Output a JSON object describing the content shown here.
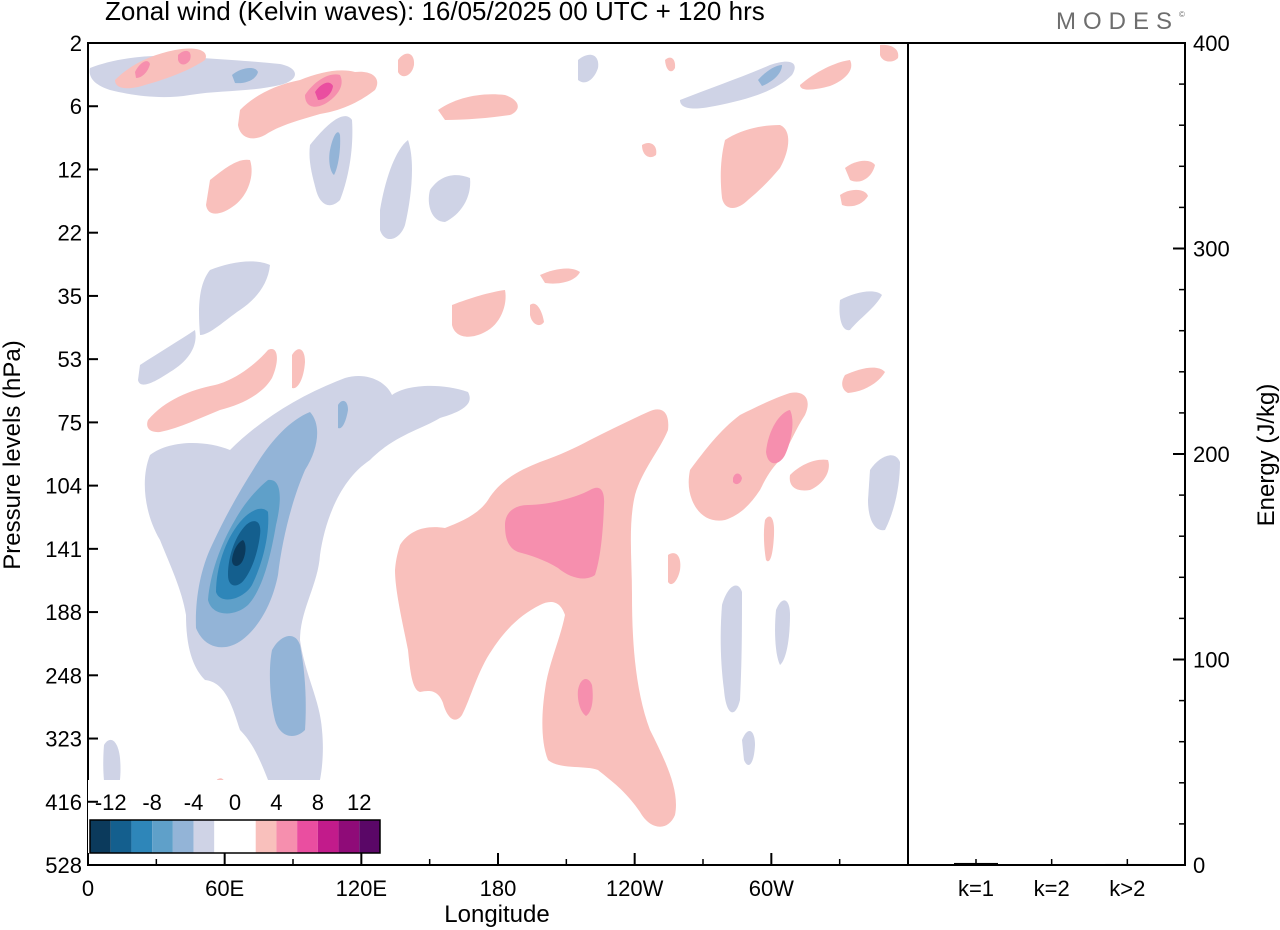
{
  "title": "Zonal wind (Kelvin waves):  16/05/2025  00 UTC  + 120 hrs",
  "logo": "MODES",
  "logo_mark": "©",
  "chart_data": [
    {
      "type": "heatmap",
      "title": "Zonal wind (Kelvin waves):  16/05/2025  00 UTC  + 120 hrs",
      "xlabel": "Longitude",
      "ylabel": "Pressure levels (hPa)",
      "x_ticks": [
        "0",
        "60E",
        "120E",
        "180",
        "120W",
        "60W"
      ],
      "x_tick_degrees": [
        0,
        60,
        120,
        180,
        240,
        300
      ],
      "xlim": [
        0,
        360
      ],
      "y_ticks": [
        "2",
        "6",
        "12",
        "22",
        "35",
        "53",
        "75",
        "104",
        "141",
        "188",
        "248",
        "323",
        "416",
        "528"
      ],
      "y_scale": "log-like, top = 2 hPa, bottom = 528 hPa",
      "colorbar": {
        "labels": [
          "-12",
          "-8",
          "-4",
          "0",
          "4",
          "8",
          "12"
        ],
        "levels": [
          -14,
          -12,
          -10,
          -8,
          -6,
          -4,
          -2,
          2,
          4,
          6,
          8,
          10,
          12,
          14
        ],
        "colors": [
          "#0b3a5c",
          "#145f8e",
          "#2e86b9",
          "#5fa0c9",
          "#93b4d7",
          "#cfd3e6",
          "#ffffff",
          "#ffffff",
          "#f9c0bc",
          "#f68fae",
          "#ea4ea0",
          "#c21b8b",
          "#8f0b78",
          "#5a0767"
        ]
      },
      "features": [
        {
          "sign": "negative",
          "peak_ms": -12,
          "lon": 65,
          "pressure_hPa": 141
        },
        {
          "sign": "negative",
          "peak_ms": -6,
          "lon": 90,
          "pressure_hPa": 248
        },
        {
          "sign": "positive",
          "peak_ms": 6,
          "lon": 205,
          "pressure_hPa": 141
        },
        {
          "sign": "positive",
          "peak_ms": 8,
          "lon": 105,
          "pressure_hPa": 5
        },
        {
          "sign": "positive",
          "peak_ms": 6,
          "lon": 305,
          "pressure_hPa": 85
        }
      ]
    },
    {
      "type": "bar",
      "ylabel": "Energy (J/kg)",
      "categories": [
        "k=1",
        "k=2",
        "k>2"
      ],
      "values": [
        1,
        0.3,
        0.5
      ],
      "ylim": [
        0,
        400
      ],
      "y_ticks": [
        "0",
        "100",
        "200",
        "300",
        "400"
      ]
    }
  ]
}
